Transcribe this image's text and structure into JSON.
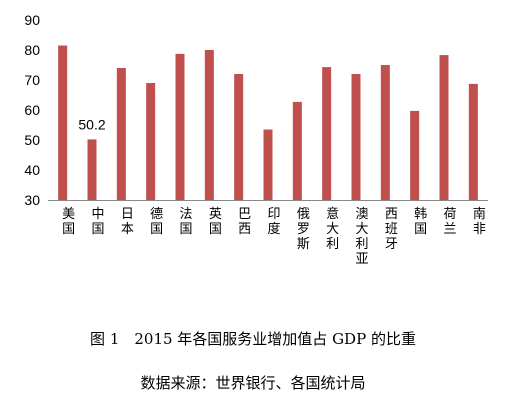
{
  "chart_data": {
    "type": "bar",
    "categories": [
      "美国",
      "中国",
      "日本",
      "德国",
      "法国",
      "英国",
      "巴西",
      "印度",
      "俄罗斯",
      "意大利",
      "澳大利亚",
      "西班牙",
      "韩国",
      "荷兰",
      "南非"
    ],
    "values": [
      81.5,
      50.2,
      74,
      69,
      78.7,
      80,
      72,
      53.5,
      62.7,
      74.3,
      72,
      75,
      59.7,
      78.3,
      68.7
    ],
    "ylim": [
      30,
      90
    ],
    "yticks": [
      30,
      40,
      50,
      60,
      70,
      80,
      90
    ],
    "data_labels": [
      {
        "category": "中国",
        "text": "50.2"
      }
    ],
    "bar_color": "#c0504d",
    "grid": false,
    "legend": "none"
  },
  "caption": {
    "figure": "图 1　2015 年各国服务业增加值占 GDP 的比重",
    "source": "数据来源：世界银行、各国统计局"
  }
}
